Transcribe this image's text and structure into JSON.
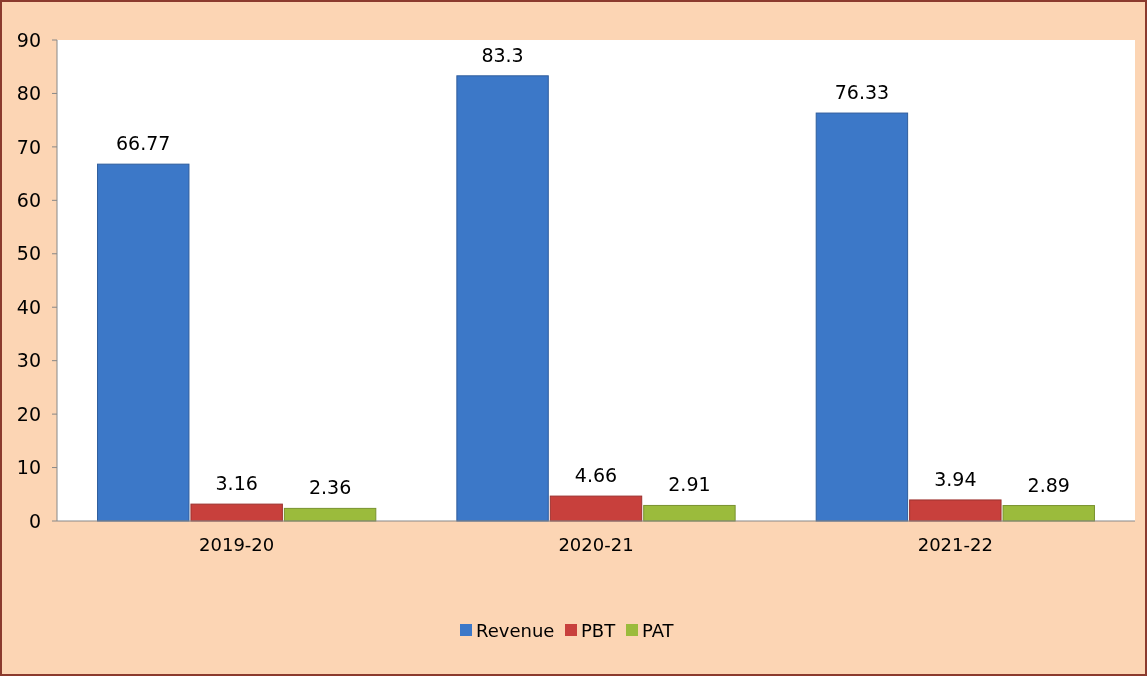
{
  "chart_data": {
    "type": "bar",
    "categories": [
      "2019-20",
      "2020-21",
      "2021-22"
    ],
    "series": [
      {
        "name": "Revenue",
        "color": "#3c78c8",
        "values": [
          66.77,
          83.3,
          76.33
        ]
      },
      {
        "name": "PBT",
        "color": "#c8403c",
        "values": [
          3.16,
          4.66,
          3.94
        ]
      },
      {
        "name": "PAT",
        "color": "#9bbb3c",
        "values": [
          2.36,
          2.91,
          2.89
        ]
      }
    ],
    "ylim": [
      0,
      90
    ],
    "yticks": [
      0,
      10,
      20,
      30,
      40,
      50,
      60,
      70,
      80,
      90
    ],
    "data_labels": true,
    "legend": "bottom",
    "grid": false
  }
}
